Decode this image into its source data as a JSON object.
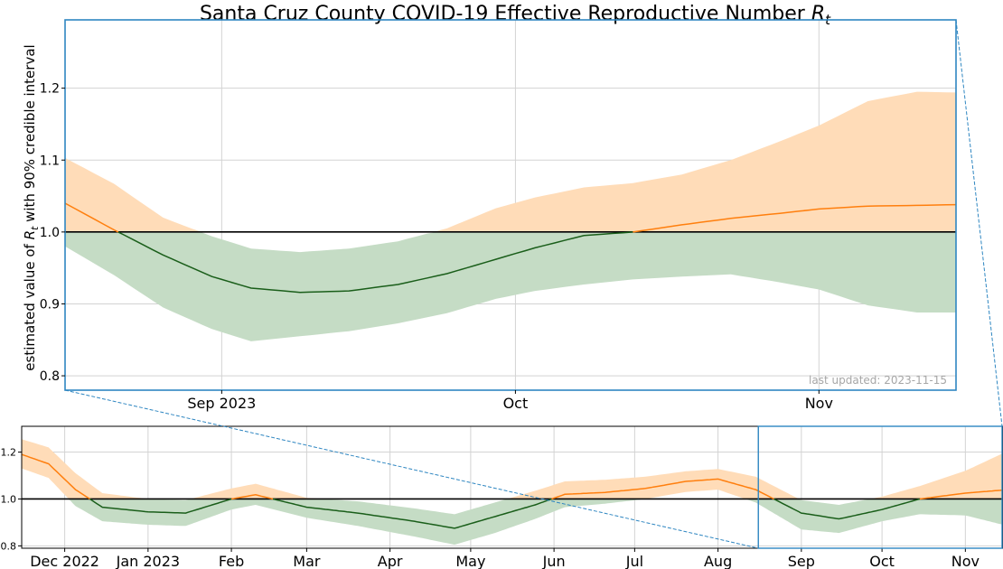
{
  "chart_data": [
    {
      "panel": "main",
      "type": "line",
      "title": "Santa Cruz County COVID-19 Effective Reproductive Number ",
      "title_symbol": "R",
      "title_symbol_sub": "t",
      "ylabel_prefix": "estimated value of ",
      "ylabel_symbol": "R",
      "ylabel_symbol_sub": "t",
      "ylabel_suffix": " with 90% credible interval",
      "annotation": "last updated: 2023-11-15",
      "x_range": [
        "2023-08-16",
        "2023-11-15"
      ],
      "ylim": [
        0.78,
        1.295
      ],
      "y_ticks": [
        {
          "value": 0.8,
          "label": "0.8"
        },
        {
          "value": 0.9,
          "label": "0.9"
        },
        {
          "value": 1.0,
          "label": "1.0"
        },
        {
          "value": 1.1,
          "label": "1.1"
        },
        {
          "value": 1.2,
          "label": "1.2"
        }
      ],
      "x_ticks": [
        {
          "date": "2023-09-01",
          "label": "Sep 2023"
        },
        {
          "date": "2023-10-01",
          "label": "Oct"
        },
        {
          "date": "2023-11-01",
          "label": "Nov"
        }
      ],
      "reference_line": 1.0,
      "grid": true,
      "colors": {
        "above": "#ff7f0e",
        "below": "#1a5e1a",
        "band_above": "#ffdcb8",
        "band_below": "#c5dcc5",
        "frame": "#2e86c1"
      },
      "series": [
        {
          "x": [
            "2023-08-16",
            "2023-08-21",
            "2023-08-26",
            "2023-08-31",
            "2023-09-04",
            "2023-09-09",
            "2023-09-14",
            "2023-09-19",
            "2023-09-24",
            "2023-09-29",
            "2023-10-03",
            "2023-10-08",
            "2023-10-13",
            "2023-10-18",
            "2023-10-23",
            "2023-10-28",
            "2023-11-01",
            "2023-11-06",
            "2023-11-11",
            "2023-11-15"
          ],
          "y": [
            1.04,
            1.003,
            0.968,
            0.938,
            0.922,
            0.916,
            0.918,
            0.927,
            0.942,
            0.962,
            0.978,
            0.995,
            1.0,
            1.01,
            1.019,
            1.026,
            1.032,
            1.036,
            1.037,
            1.038
          ],
          "lower": [
            0.98,
            0.94,
            0.895,
            0.865,
            0.848,
            0.855,
            0.862,
            0.873,
            0.887,
            0.907,
            0.918,
            0.927,
            0.934,
            0.938,
            0.941,
            0.93,
            0.92,
            0.898,
            0.888,
            0.888
          ],
          "upper": [
            1.103,
            1.067,
            1.02,
            0.994,
            0.977,
            0.972,
            0.977,
            0.987,
            1.005,
            1.033,
            1.048,
            1.062,
            1.068,
            1.08,
            1.1,
            1.126,
            1.148,
            1.182,
            1.195,
            1.194
          ]
        }
      ]
    },
    {
      "panel": "overview",
      "type": "line",
      "x_range": [
        "2022-11-15",
        "2023-11-15"
      ],
      "ylim": [
        0.79,
        1.31
      ],
      "y_ticks": [
        {
          "value": 0.8,
          "label": "0.8"
        },
        {
          "value": 1.0,
          "label": "1.0"
        },
        {
          "value": 1.2,
          "label": "1.2"
        }
      ],
      "x_ticks": [
        {
          "date": "2022-12-01",
          "label": "Dec 2022"
        },
        {
          "date": "2023-01-01",
          "label": "Jan 2023"
        },
        {
          "date": "2023-02-01",
          "label": "Feb"
        },
        {
          "date": "2023-03-01",
          "label": "Mar"
        },
        {
          "date": "2023-04-01",
          "label": "Apr"
        },
        {
          "date": "2023-05-01",
          "label": "May"
        },
        {
          "date": "2023-06-01",
          "label": "Jun"
        },
        {
          "date": "2023-07-01",
          "label": "Jul"
        },
        {
          "date": "2023-08-01",
          "label": "Aug"
        },
        {
          "date": "2023-09-01",
          "label": "Sep"
        },
        {
          "date": "2023-10-01",
          "label": "Oct"
        },
        {
          "date": "2023-11-01",
          "label": "Nov"
        }
      ],
      "reference_line": 1.0,
      "grid": true,
      "zoom_window": [
        "2023-08-16",
        "2023-11-15"
      ],
      "series": [
        {
          "x": [
            "2022-11-15",
            "2022-11-25",
            "2022-12-05",
            "2022-12-15",
            "2023-01-01",
            "2023-01-15",
            "2023-02-01",
            "2023-02-10",
            "2023-03-01",
            "2023-03-20",
            "2023-04-10",
            "2023-04-25",
            "2023-05-10",
            "2023-05-25",
            "2023-06-05",
            "2023-06-20",
            "2023-07-05",
            "2023-07-20",
            "2023-08-01",
            "2023-08-15",
            "2023-09-01",
            "2023-09-15",
            "2023-10-01",
            "2023-10-15",
            "2023-11-01",
            "2023-11-15"
          ],
          "y": [
            1.19,
            1.15,
            1.04,
            0.965,
            0.945,
            0.94,
            1.0,
            1.018,
            0.965,
            0.94,
            0.905,
            0.875,
            0.925,
            0.975,
            1.02,
            1.028,
            1.045,
            1.075,
            1.085,
            1.04,
            0.94,
            0.915,
            0.955,
            1.0,
            1.025,
            1.038
          ],
          "lower": [
            1.13,
            1.09,
            0.97,
            0.905,
            0.89,
            0.885,
            0.955,
            0.975,
            0.92,
            0.885,
            0.84,
            0.805,
            0.855,
            0.915,
            0.965,
            0.98,
            1.0,
            1.03,
            1.04,
            0.985,
            0.87,
            0.855,
            0.905,
            0.935,
            0.93,
            0.89
          ],
          "upper": [
            1.255,
            1.22,
            1.11,
            1.025,
            1.0,
            0.995,
            1.045,
            1.065,
            1.005,
            0.99,
            0.96,
            0.935,
            0.985,
            1.035,
            1.075,
            1.082,
            1.095,
            1.118,
            1.128,
            1.095,
            0.995,
            0.975,
            1.01,
            1.055,
            1.12,
            1.195
          ]
        }
      ]
    }
  ]
}
